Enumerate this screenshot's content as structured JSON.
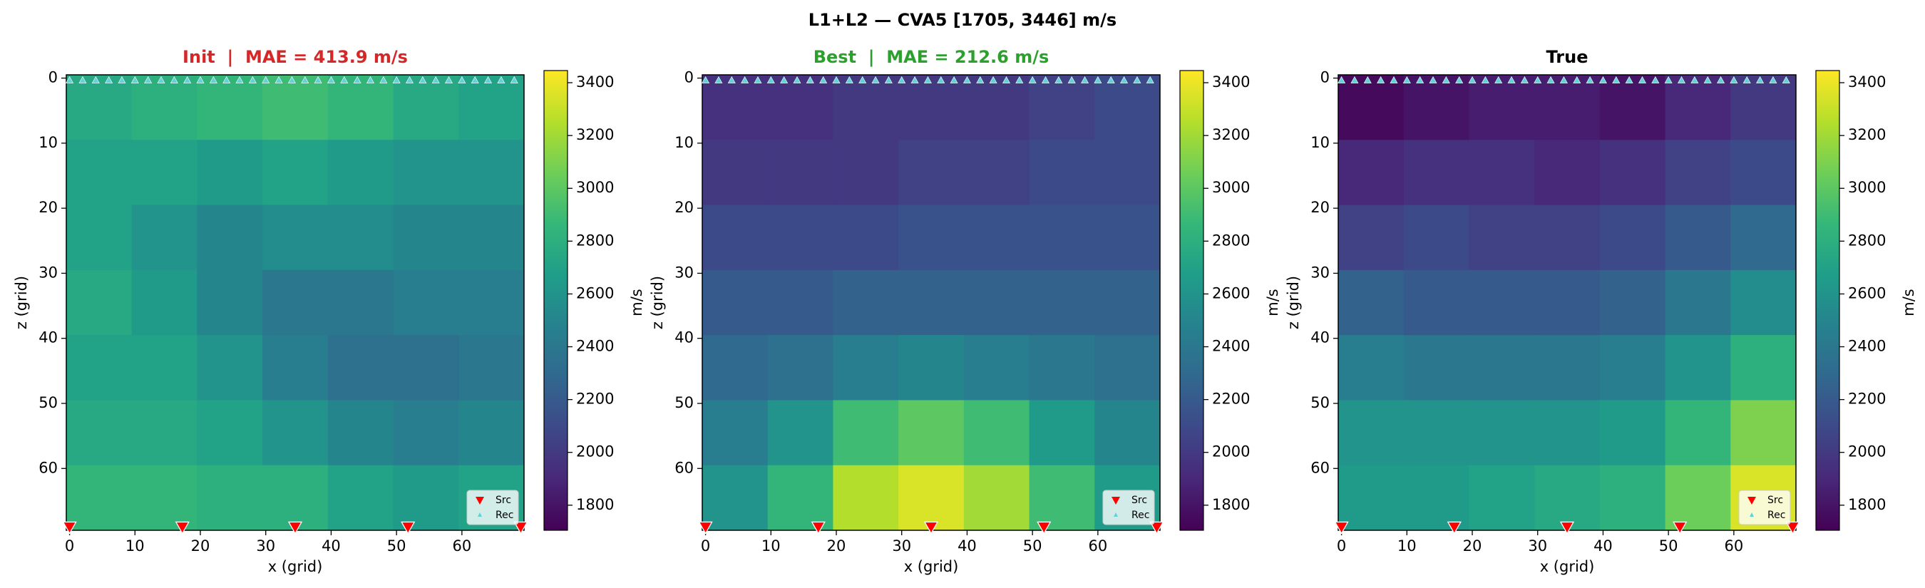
{
  "title": "L1+L2 — CVA5 [1705, 3446] m/s",
  "chart_data": [
    {
      "type": "heatmap",
      "title": "Init  |  MAE = 413.9 m/s",
      "title_color": "#d62728",
      "x_label": "x (grid)",
      "y_label": "z (grid)",
      "colorbar_label": "m/s",
      "colormap": "viridis",
      "xlim": [
        -0.5,
        69.5
      ],
      "ylim": [
        69.5,
        -0.5
      ],
      "xticks": [
        0,
        10,
        20,
        30,
        40,
        50,
        60
      ],
      "yticks": [
        0,
        10,
        20,
        30,
        40,
        50,
        60
      ],
      "clim": [
        1705,
        3446
      ],
      "cticks": [
        1800,
        2000,
        2200,
        2400,
        2600,
        2800,
        3000,
        3200,
        3400
      ],
      "x_bins": [
        -0.5,
        9.5,
        19.5,
        29.5,
        39.5,
        49.5,
        59.5,
        69.5
      ],
      "y_bins": [
        -0.5,
        9.5,
        19.5,
        29.5,
        39.5,
        49.5,
        59.5,
        69.5
      ],
      "values": [
        [
          2750,
          2800,
          2850,
          2900,
          2850,
          2750,
          2700
        ],
        [
          2700,
          2700,
          2650,
          2700,
          2650,
          2600,
          2600
        ],
        [
          2700,
          2600,
          2500,
          2550,
          2550,
          2500,
          2500
        ],
        [
          2750,
          2650,
          2500,
          2400,
          2400,
          2450,
          2450
        ],
        [
          2700,
          2700,
          2600,
          2450,
          2350,
          2350,
          2400
        ],
        [
          2750,
          2750,
          2700,
          2600,
          2500,
          2450,
          2500
        ],
        [
          2850,
          2850,
          2800,
          2800,
          2700,
          2650,
          2700
        ]
      ],
      "sources": {
        "name": "Src",
        "color": "#ff0000",
        "x": [
          0,
          17.25,
          34.5,
          51.75,
          69
        ],
        "z": 69
      },
      "receivers": {
        "name": "Rec",
        "color": "#5fd3d8",
        "x": [
          0,
          2,
          4,
          6,
          8,
          10,
          12,
          14,
          16,
          18,
          20,
          22,
          24,
          26,
          28,
          30,
          32,
          34,
          36,
          38,
          40,
          42,
          44,
          46,
          48,
          50,
          52,
          54,
          56,
          58,
          60,
          62,
          64,
          66,
          68
        ],
        "z": 0
      }
    },
    {
      "type": "heatmap",
      "title": "Best  |  MAE = 212.6 m/s",
      "title_color": "#2ca02c",
      "x_label": "x (grid)",
      "y_label": "z (grid)",
      "colorbar_label": "m/s",
      "colormap": "viridis",
      "xlim": [
        -0.5,
        69.5
      ],
      "ylim": [
        69.5,
        -0.5
      ],
      "xticks": [
        0,
        10,
        20,
        30,
        40,
        50,
        60
      ],
      "yticks": [
        0,
        10,
        20,
        30,
        40,
        50,
        60
      ],
      "clim": [
        1705,
        3446
      ],
      "cticks": [
        1800,
        2000,
        2200,
        2400,
        2600,
        2800,
        3000,
        3200,
        3400
      ],
      "x_bins": [
        -0.5,
        9.5,
        19.5,
        29.5,
        39.5,
        49.5,
        59.5,
        69.5
      ],
      "y_bins": [
        -0.5,
        9.5,
        19.5,
        29.5,
        39.5,
        49.5,
        59.5,
        69.5
      ],
      "values": [
        [
          1950,
          1950,
          2000,
          2000,
          2000,
          2050,
          2100
        ],
        [
          2000,
          2000,
          2000,
          2050,
          2050,
          2100,
          2100
        ],
        [
          2100,
          2100,
          2100,
          2150,
          2150,
          2150,
          2150
        ],
        [
          2200,
          2200,
          2250,
          2250,
          2250,
          2250,
          2250
        ],
        [
          2300,
          2350,
          2450,
          2500,
          2450,
          2400,
          2350
        ],
        [
          2450,
          2600,
          2900,
          3000,
          2900,
          2650,
          2500
        ],
        [
          2600,
          2850,
          3250,
          3350,
          3200,
          2900,
          2650
        ]
      ],
      "sources": {
        "name": "Src",
        "color": "#ff0000",
        "x": [
          0,
          17.25,
          34.5,
          51.75,
          69
        ],
        "z": 69
      },
      "receivers": {
        "name": "Rec",
        "color": "#5fd3d8",
        "x": [
          0,
          2,
          4,
          6,
          8,
          10,
          12,
          14,
          16,
          18,
          20,
          22,
          24,
          26,
          28,
          30,
          32,
          34,
          36,
          38,
          40,
          42,
          44,
          46,
          48,
          50,
          52,
          54,
          56,
          58,
          60,
          62,
          64,
          66,
          68
        ],
        "z": 0
      }
    },
    {
      "type": "heatmap",
      "title": "True",
      "title_color": "#000000",
      "x_label": "x (grid)",
      "y_label": "z (grid)",
      "colorbar_label": "m/s",
      "colormap": "viridis",
      "xlim": [
        -0.5,
        69.5
      ],
      "ylim": [
        69.5,
        -0.5
      ],
      "xticks": [
        0,
        10,
        20,
        30,
        40,
        50,
        60
      ],
      "yticks": [
        0,
        10,
        20,
        30,
        40,
        50,
        60
      ],
      "clim": [
        1705,
        3446
      ],
      "cticks": [
        1800,
        2000,
        2200,
        2400,
        2600,
        2800,
        3000,
        3200,
        3400
      ],
      "x_bins": [
        -0.5,
        9.5,
        19.5,
        29.5,
        39.5,
        49.5,
        59.5,
        69.5
      ],
      "y_bins": [
        -0.5,
        9.5,
        19.5,
        29.5,
        39.5,
        49.5,
        59.5,
        69.5
      ],
      "values": [
        [
          1750,
          1800,
          1850,
          1850,
          1800,
          1900,
          2000
        ],
        [
          1900,
          1950,
          1950,
          1900,
          1950,
          2050,
          2100
        ],
        [
          2050,
          2100,
          2050,
          2050,
          2100,
          2200,
          2300
        ],
        [
          2250,
          2200,
          2200,
          2200,
          2250,
          2400,
          2550
        ],
        [
          2450,
          2400,
          2400,
          2400,
          2450,
          2600,
          2800
        ],
        [
          2600,
          2600,
          2600,
          2600,
          2650,
          2850,
          3100
        ],
        [
          2650,
          2650,
          2700,
          2750,
          2800,
          3050,
          3350
        ]
      ],
      "sources": {
        "name": "Src",
        "color": "#ff0000",
        "x": [
          0,
          17.25,
          34.5,
          51.75,
          69
        ],
        "z": 69
      },
      "receivers": {
        "name": "Rec",
        "color": "#5fd3d8",
        "x": [
          0,
          2,
          4,
          6,
          8,
          10,
          12,
          14,
          16,
          18,
          20,
          22,
          24,
          26,
          28,
          30,
          32,
          34,
          36,
          38,
          40,
          42,
          44,
          46,
          48,
          50,
          52,
          54,
          56,
          58,
          60,
          62,
          64,
          66,
          68
        ],
        "z": 0
      }
    }
  ]
}
